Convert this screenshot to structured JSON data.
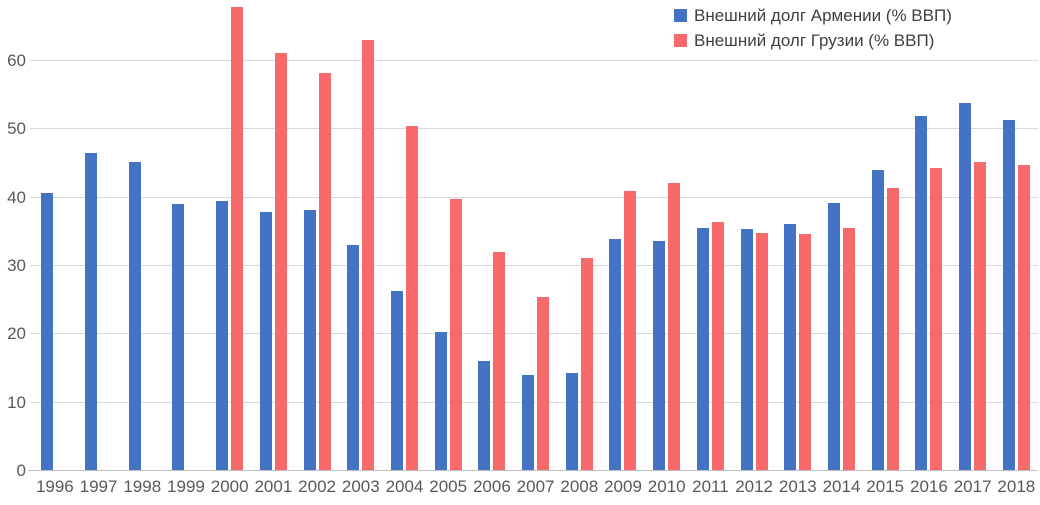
{
  "chart_data": {
    "type": "bar",
    "title": "",
    "xlabel": "",
    "ylabel": "",
    "categories": [
      "1996",
      "1997",
      "1998",
      "1999",
      "2000",
      "2001",
      "2002",
      "2003",
      "2004",
      "2005",
      "2006",
      "2007",
      "2008",
      "2009",
      "2010",
      "2011",
      "2012",
      "2013",
      "2014",
      "2015",
      "2016",
      "2017",
      "2018"
    ],
    "series": [
      {
        "name": "Внешний долг Армении (% ВВП)",
        "color": "#4472c4",
        "values": [
          40.7,
          46.5,
          45.2,
          39.1,
          39.5,
          37.9,
          38.2,
          33.0,
          26.3,
          20.3,
          16.1,
          14.0,
          14.4,
          34.0,
          33.7,
          35.6,
          35.4,
          36.1,
          39.2,
          44.1,
          52.0,
          53.8,
          51.4
        ]
      },
      {
        "name": "Внешний долг Грузии (% ВВП)",
        "color": "#f8696b",
        "values": [
          null,
          null,
          null,
          null,
          67.9,
          61.2,
          58.2,
          63.1,
          50.5,
          39.8,
          32.0,
          25.4,
          31.1,
          41.0,
          42.1,
          36.5,
          34.8,
          34.7,
          35.5,
          41.4,
          44.3,
          45.2,
          44.8
        ]
      }
    ],
    "y_ticks": [
      0,
      10,
      20,
      30,
      40,
      50,
      60
    ],
    "ylim": [
      0,
      68.9
    ],
    "grid": "horizontal",
    "legend_position": "top-right",
    "gridline_color": "#d9d9d9",
    "axis_text_color": "#595959",
    "legend_text_color": "#3f3f3f"
  }
}
